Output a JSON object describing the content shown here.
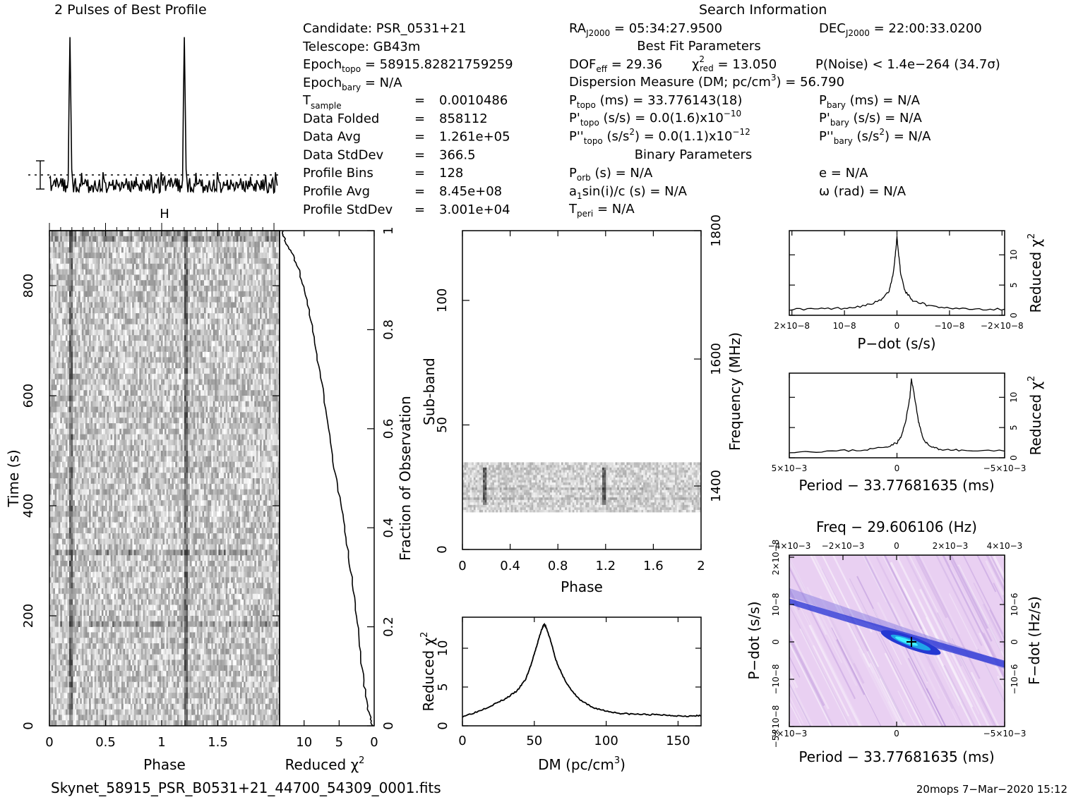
{
  "header": {
    "profile_title": "2 Pulses of Best Profile",
    "search_title": "Search Information",
    "candidate": "Candidate:  PSR_0531+21",
    "telescope": "Telescope:  GB43m",
    "epoch_topo": "Epoch",
    "epoch_topo_sub": "topo",
    "epoch_topo_val": " = 58915.82821759259",
    "epoch_bary": "Epoch",
    "epoch_bary_sub": "bary",
    "epoch_bary_val": " = N/A",
    "stats": [
      {
        "name": "T",
        "sub": "sample",
        "value": "0.0010486"
      },
      {
        "name": "Data Folded",
        "sub": "",
        "value": "858112"
      },
      {
        "name": "Data Avg",
        "sub": "",
        "value": "1.261e+05"
      },
      {
        "name": "Data StdDev",
        "sub": "",
        "value": "366.5"
      },
      {
        "name": "Profile Bins",
        "sub": "",
        "value": "128"
      },
      {
        "name": "Profile Avg",
        "sub": "",
        "value": "8.45e+08"
      },
      {
        "name": "Profile StdDev",
        "sub": "",
        "value": "3.001e+04"
      }
    ],
    "ra": "RA",
    "ra_sub": "J2000",
    "ra_val": " = 05:34:27.9500",
    "dec": "DEC",
    "dec_sub": "J2000",
    "dec_val": " = 22:00:33.0200",
    "best_fit_title": "Best Fit Parameters",
    "dof": "DOF",
    "dof_sub": "eff",
    "dof_val": " = 29.36",
    "chi": "χ",
    "chi_sup": "2",
    "chi_sub": "red",
    "chi_val": " = 13.050",
    "pnoise": "P(Noise) < 1.4e−264  (34.7σ)",
    "dm_line": "Dispersion Measure (DM; pc/cm",
    "dm_sup": "3",
    "dm_val": ") = 56.790",
    "p_topo": "P",
    "p_topo_sub": "topo",
    "p_topo_val": " (ms) =  33.776143(18)",
    "p_bary": "P",
    "p_bary_sub": "bary",
    "p_bary_val": " (ms) = N/A",
    "pd_topo": "P'",
    "pd_topo_sub": "topo",
    "pd_topo_val": " (s/s) = 0.0(1.6)x10",
    "pd_topo_exp": "−10",
    "pd_bary": "P'",
    "pd_bary_sub": "bary",
    "pd_bary_val": " (s/s) = N/A",
    "pdd_topo": "P''",
    "pdd_topo_sub": "topo",
    "pdd_topo_val": " (s/s",
    "pdd_topo_sup": "2",
    "pdd_topo_val2": ") = 0.0(1.1)x10",
    "pdd_topo_exp": "−12",
    "pdd_bary": "P''",
    "pdd_bary_sub": "bary",
    "pdd_bary_val": " (s/s",
    "pdd_bary_sup": "2",
    "pdd_bary_val2": ") = N/A",
    "binary_title": "Binary Parameters",
    "porb": "P",
    "porb_sub": "orb",
    "porb_val": " (s) = N/A",
    "e_val": "e = N/A",
    "a1": "a",
    "a1_sub": "1",
    "a1_val": "sin(i)/c (s) = N/A",
    "omega_val": "ω (rad) = N/A",
    "tperi": "T",
    "tperi_sub": "peri",
    "tperi_val": " = N/A"
  },
  "footer": {
    "filename": "Skynet_58915_PSR_B0531+21_44700_54309_0001.fits",
    "stamp": "20mops  7−Mar−2020 15:12"
  },
  "colors": {
    "ink": "#000000",
    "pp_bg": "#e9d0f2",
    "pp_band": "#2f3cd6",
    "pp_peak": "#3ff0ff"
  },
  "chart_data": [
    {
      "id": "profile",
      "type": "line",
      "title": "2 Pulses of Best Profile",
      "note": "two rotations of the folded profile; sharp peaks near phase 0.18 and 1.18",
      "peak_phases": [
        0.18,
        1.18
      ],
      "marker": "H"
    },
    {
      "id": "time_phase",
      "type": "heatmap",
      "xlabel": "Phase",
      "ylabel": "Time (s)",
      "x_ticks": [
        "0",
        "0.5",
        "1",
        "1.5"
      ],
      "y_ticks": [
        "0",
        "200",
        "400",
        "600",
        "800"
      ],
      "xlim": [
        0,
        2
      ],
      "ylim": [
        0,
        900
      ],
      "pulse_phases": [
        0.18,
        1.18
      ]
    },
    {
      "id": "chi_vs_time",
      "type": "line",
      "xlabel": "Reduced χ",
      "xlabel_sup": "2",
      "ylabel": "Fraction of Observation",
      "x_ticks": [
        "10",
        "5",
        "0"
      ],
      "y_ticks": [
        "0",
        "0.2",
        "0.4",
        "0.6",
        "0.8",
        "1"
      ],
      "xlim": [
        13.5,
        0
      ],
      "ylim": [
        0,
        1
      ],
      "points": [
        [
          0.3,
          0
        ],
        [
          0.6,
          0.02
        ],
        [
          1.0,
          0.04
        ],
        [
          1.4,
          0.08
        ],
        [
          2.0,
          0.15
        ],
        [
          2.5,
          0.22
        ],
        [
          3.2,
          0.3
        ],
        [
          4.0,
          0.38
        ],
        [
          4.8,
          0.45
        ],
        [
          5.7,
          0.52
        ],
        [
          6.5,
          0.6
        ],
        [
          7.3,
          0.68
        ],
        [
          8.2,
          0.75
        ],
        [
          9.0,
          0.82
        ],
        [
          10.0,
          0.88
        ],
        [
          10.7,
          0.92
        ],
        [
          11.6,
          0.95
        ],
        [
          12.4,
          0.97
        ],
        [
          13.0,
          0.99
        ],
        [
          13.05,
          1.0
        ]
      ]
    },
    {
      "id": "subband",
      "type": "heatmap",
      "xlabel": "Phase",
      "ylabel": "Sub-band",
      "y2label": "Frequency (MHz)",
      "x_ticks": [
        "0",
        "0.4",
        "0.8",
        "1.2",
        "1.6",
        "2"
      ],
      "y_ticks": [
        "0",
        "50",
        "100"
      ],
      "y2_ticks": [
        "1400",
        "1600",
        "1800"
      ],
      "xlim": [
        0,
        2
      ],
      "ylim": [
        0,
        128
      ],
      "filled_subbands": [
        15,
        35
      ],
      "pulse_phases": [
        0.18,
        1.18
      ]
    },
    {
      "id": "dm_curve",
      "type": "line",
      "xlabel": "DM (pc/cm",
      "xlabel_sup": "3",
      "xlabel_end": ")",
      "ylabel": "Reduced χ",
      "ylabel_sup": "2",
      "x_ticks": [
        "0",
        "50",
        "100",
        "150"
      ],
      "y_ticks": [
        "0",
        "5",
        "10"
      ],
      "xlim": [
        0,
        166
      ],
      "ylim": [
        0,
        14
      ],
      "points": [
        [
          0,
          1.2
        ],
        [
          10,
          1.8
        ],
        [
          20,
          2.6
        ],
        [
          30,
          3.5
        ],
        [
          38,
          4.5
        ],
        [
          44,
          6.0
        ],
        [
          48,
          8.0
        ],
        [
          52,
          10.5
        ],
        [
          55,
          12.4
        ],
        [
          56.8,
          13.05
        ],
        [
          58,
          12.8
        ],
        [
          61,
          11.2
        ],
        [
          65,
          8.5
        ],
        [
          70,
          6.3
        ],
        [
          76,
          4.5
        ],
        [
          82,
          3.3
        ],
        [
          90,
          2.4
        ],
        [
          100,
          1.9
        ],
        [
          110,
          1.6
        ],
        [
          120,
          1.5
        ],
        [
          130,
          1.45
        ],
        [
          140,
          1.4
        ],
        [
          150,
          1.3
        ],
        [
          160,
          1.25
        ],
        [
          166,
          1.3
        ]
      ]
    },
    {
      "id": "pdot_curve",
      "type": "line",
      "xlabel": "P−dot (s/s)",
      "ylabel": "Reduced χ",
      "ylabel_sup": "2",
      "x_ticks": [
        "2×10−8",
        "10−8",
        "0",
        "−10−8",
        "−2×10−8"
      ],
      "y_ticks": [
        "0",
        "5",
        "10"
      ],
      "xlim": [
        2.05e-08,
        -2.05e-08
      ],
      "ylim": [
        0,
        14
      ],
      "points": [
        [
          2.05e-08,
          1.0
        ],
        [
          1.5e-08,
          1.05
        ],
        [
          1e-08,
          1.2
        ],
        [
          6e-09,
          1.6
        ],
        [
          3e-09,
          2.5
        ],
        [
          1.5e-09,
          4.0
        ],
        [
          7e-10,
          7.0
        ],
        [
          2e-10,
          11.0
        ],
        [
          0,
          13.05
        ],
        [
          -2e-10,
          11.0
        ],
        [
          -7e-10,
          7.0
        ],
        [
          -1.5e-09,
          4.0
        ],
        [
          -3e-09,
          2.5
        ],
        [
          -6e-09,
          1.6
        ],
        [
          -1e-08,
          1.2
        ],
        [
          -1.5e-08,
          1.05
        ],
        [
          -2.05e-08,
          1.0
        ]
      ]
    },
    {
      "id": "period_curve",
      "type": "line",
      "xlabel": "Period − 33.77681635 (ms)",
      "ylabel": "Reduced χ",
      "ylabel_sup": "2",
      "x_ticks": [
        "5×10−3",
        "0",
        "−5×10−3"
      ],
      "y_ticks": [
        "0",
        "5",
        "10"
      ],
      "xlim": [
        0.005,
        -0.005
      ],
      "ylim": [
        0,
        14
      ],
      "points": [
        [
          0.005,
          1.0
        ],
        [
          0.003,
          1.1
        ],
        [
          0.0015,
          1.3
        ],
        [
          0.0005,
          1.8
        ],
        [
          0,
          2.5
        ],
        [
          -0.0002,
          3.5
        ],
        [
          -0.0004,
          6.0
        ],
        [
          -0.0006,
          10.0
        ],
        [
          -0.00067,
          13.05
        ],
        [
          -0.0008,
          10.5
        ],
        [
          -0.001,
          6.0
        ],
        [
          -0.0012,
          3.2
        ],
        [
          -0.0015,
          2.0
        ],
        [
          -0.002,
          1.4
        ],
        [
          -0.003,
          1.2
        ],
        [
          -0.005,
          1.1
        ]
      ]
    },
    {
      "id": "ppdot_plane",
      "type": "heatmap",
      "title": "Freq − 29.606106 (Hz)",
      "xlabel": "Period − 33.77681635 (ms)",
      "ylabel": "P−dot (s/s)",
      "y2label": "F−dot (Hz/s)",
      "x_ticks": [
        "5×10−3",
        "0",
        "−5×10−3"
      ],
      "x2_ticks": [
        "−4×10−3",
        "−2×10−3",
        "0",
        "2×10−3",
        "4×10−3"
      ],
      "y_ticks": [
        "−5×10−8",
        "−10−8",
        "0",
        "10−8",
        "2×10−8"
      ],
      "y2_ticks": [
        "−10−6",
        "0",
        "10−6"
      ],
      "best": [
        -0.00067,
        0
      ]
    }
  ]
}
